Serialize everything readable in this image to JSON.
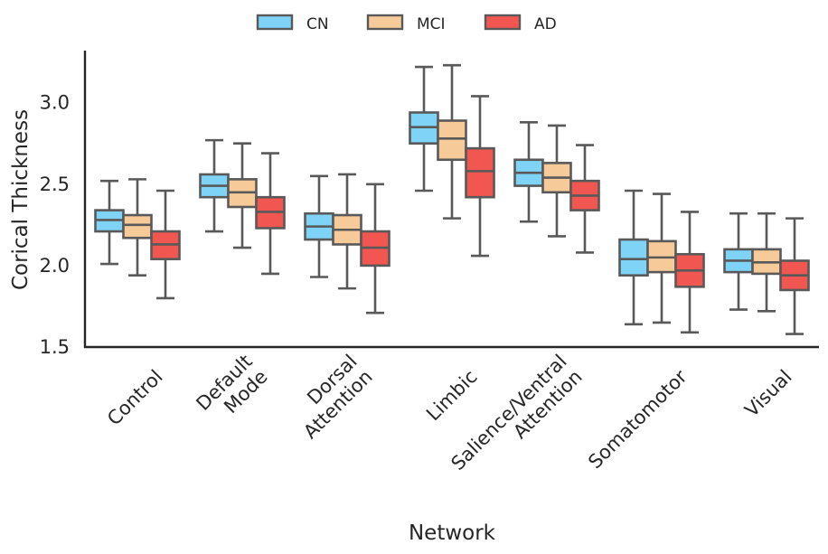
{
  "chart_data": {
    "type": "box",
    "title": "",
    "xlabel": "Network",
    "ylabel": "Corical Thickness",
    "ylim": [
      1.5,
      3.32
    ],
    "yticks": [
      1.5,
      2.0,
      2.5,
      3.0
    ],
    "ytick_labels": [
      "1.5",
      "2.0",
      "2.5",
      "3.0"
    ],
    "legend_position": "top-center",
    "categories": [
      [
        "Control"
      ],
      [
        "Default",
        "Mode"
      ],
      [
        "Dorsal",
        "Attention"
      ],
      [
        "Limbic"
      ],
      [
        "Salience/Ventral",
        "Attention"
      ],
      [
        "Somatomotor"
      ],
      [
        "Visual"
      ]
    ],
    "series": [
      {
        "name": "CN",
        "color": "#7fd3f7",
        "boxes": [
          {
            "whislo": 2.01,
            "q1": 2.21,
            "med": 2.28,
            "q3": 2.34,
            "whishi": 2.52
          },
          {
            "whislo": 2.21,
            "q1": 2.42,
            "med": 2.49,
            "q3": 2.56,
            "whishi": 2.77
          },
          {
            "whislo": 1.93,
            "q1": 2.16,
            "med": 2.24,
            "q3": 2.32,
            "whishi": 2.55
          },
          {
            "whislo": 2.46,
            "q1": 2.75,
            "med": 2.85,
            "q3": 2.94,
            "whishi": 3.22
          },
          {
            "whislo": 2.27,
            "q1": 2.49,
            "med": 2.57,
            "q3": 2.65,
            "whishi": 2.88
          },
          {
            "whislo": 1.64,
            "q1": 1.94,
            "med": 2.04,
            "q3": 2.16,
            "whishi": 2.46
          },
          {
            "whislo": 1.73,
            "q1": 1.96,
            "med": 2.03,
            "q3": 2.1,
            "whishi": 2.32
          }
        ]
      },
      {
        "name": "MCI",
        "color": "#f7cb99",
        "boxes": [
          {
            "whislo": 1.94,
            "q1": 2.17,
            "med": 2.25,
            "q3": 2.31,
            "whishi": 2.53
          },
          {
            "whislo": 2.11,
            "q1": 2.36,
            "med": 2.45,
            "q3": 2.53,
            "whishi": 2.75
          },
          {
            "whislo": 1.86,
            "q1": 2.13,
            "med": 2.22,
            "q3": 2.31,
            "whishi": 2.56
          },
          {
            "whislo": 2.29,
            "q1": 2.65,
            "med": 2.78,
            "q3": 2.89,
            "whishi": 3.23
          },
          {
            "whislo": 2.18,
            "q1": 2.45,
            "med": 2.54,
            "q3": 2.63,
            "whishi": 2.86
          },
          {
            "whislo": 1.65,
            "q1": 1.96,
            "med": 2.05,
            "q3": 2.15,
            "whishi": 2.44
          },
          {
            "whislo": 1.72,
            "q1": 1.95,
            "med": 2.02,
            "q3": 2.1,
            "whishi": 2.32
          }
        ]
      },
      {
        "name": "AD",
        "color": "#f25651",
        "boxes": [
          {
            "whislo": 1.8,
            "q1": 2.04,
            "med": 2.13,
            "q3": 2.21,
            "whishi": 2.46
          },
          {
            "whislo": 1.95,
            "q1": 2.23,
            "med": 2.33,
            "q3": 2.42,
            "whishi": 2.69
          },
          {
            "whislo": 1.71,
            "q1": 2.0,
            "med": 2.11,
            "q3": 2.21,
            "whishi": 2.5
          },
          {
            "whislo": 2.06,
            "q1": 2.42,
            "med": 2.58,
            "q3": 2.72,
            "whishi": 3.04
          },
          {
            "whislo": 2.08,
            "q1": 2.34,
            "med": 2.43,
            "q3": 2.52,
            "whishi": 2.74
          },
          {
            "whislo": 1.59,
            "q1": 1.87,
            "med": 1.97,
            "q3": 2.07,
            "whishi": 2.33
          },
          {
            "whislo": 1.58,
            "q1": 1.85,
            "med": 1.94,
            "q3": 2.03,
            "whishi": 2.29
          }
        ]
      }
    ],
    "style": {
      "box_edge_color": "#595959",
      "axis_color": "#262626"
    }
  }
}
